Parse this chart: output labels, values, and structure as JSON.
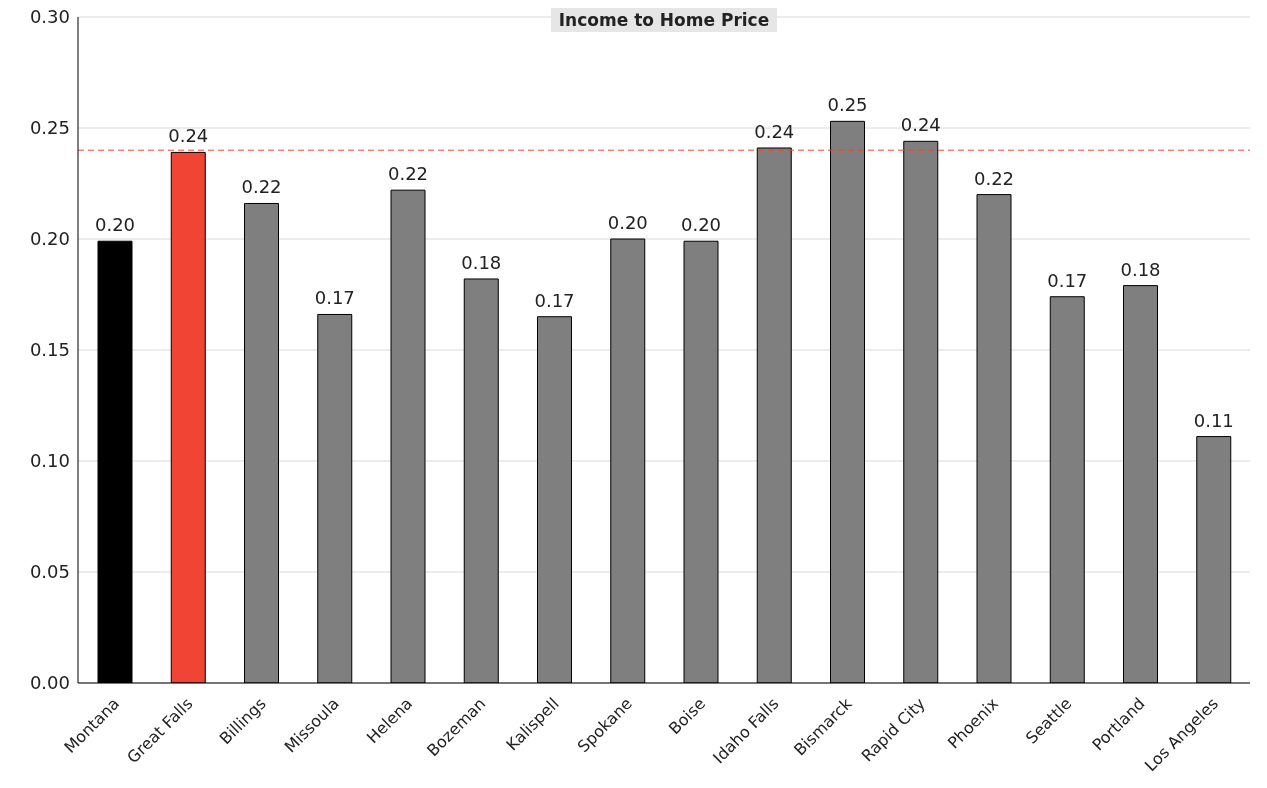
{
  "chart_data": {
    "type": "bar",
    "title": "Income to Home Price",
    "categories": [
      "Montana",
      "Great Falls",
      "Billings",
      "Missoula",
      "Helena",
      "Bozeman",
      "Kalispell",
      "Spokane",
      "Boise",
      "Idaho Falls",
      "Bismarck",
      "Rapid City",
      "Phoenix",
      "Seattle",
      "Portland",
      "Los Angeles"
    ],
    "values": [
      0.199,
      0.239,
      0.216,
      0.166,
      0.222,
      0.182,
      0.165,
      0.2,
      0.199,
      0.241,
      0.253,
      0.244,
      0.22,
      0.174,
      0.179,
      0.111
    ],
    "colors": [
      "#000000",
      "#f04434",
      "#7f7f7f",
      "#7f7f7f",
      "#7f7f7f",
      "#7f7f7f",
      "#7f7f7f",
      "#7f7f7f",
      "#7f7f7f",
      "#7f7f7f",
      "#7f7f7f",
      "#7f7f7f",
      "#7f7f7f",
      "#7f7f7f",
      "#7f7f7f",
      "#7f7f7f"
    ],
    "value_labels": [
      "0.20",
      "0.24",
      "0.22",
      "0.17",
      "0.22",
      "0.18",
      "0.17",
      "0.20",
      "0.20",
      "0.24",
      "0.25",
      "0.24",
      "0.22",
      "0.17",
      "0.18",
      "0.11"
    ],
    "ylim": [
      0,
      0.3
    ],
    "yticks": [
      {
        "value": 0,
        "label": "0.00"
      },
      {
        "value": 0.05,
        "label": "0.05"
      },
      {
        "value": 0.1,
        "label": "0.10"
      },
      {
        "value": 0.15,
        "label": "0.15"
      },
      {
        "value": 0.2,
        "label": "0.20"
      },
      {
        "value": 0.25,
        "label": "0.25"
      },
      {
        "value": 0.3,
        "label": "0.30"
      }
    ],
    "grid": "y",
    "ref_lines": [
      {
        "axis": "y",
        "value": 0.24,
        "color": "#f04434",
        "line_style": "dashed"
      }
    ]
  }
}
